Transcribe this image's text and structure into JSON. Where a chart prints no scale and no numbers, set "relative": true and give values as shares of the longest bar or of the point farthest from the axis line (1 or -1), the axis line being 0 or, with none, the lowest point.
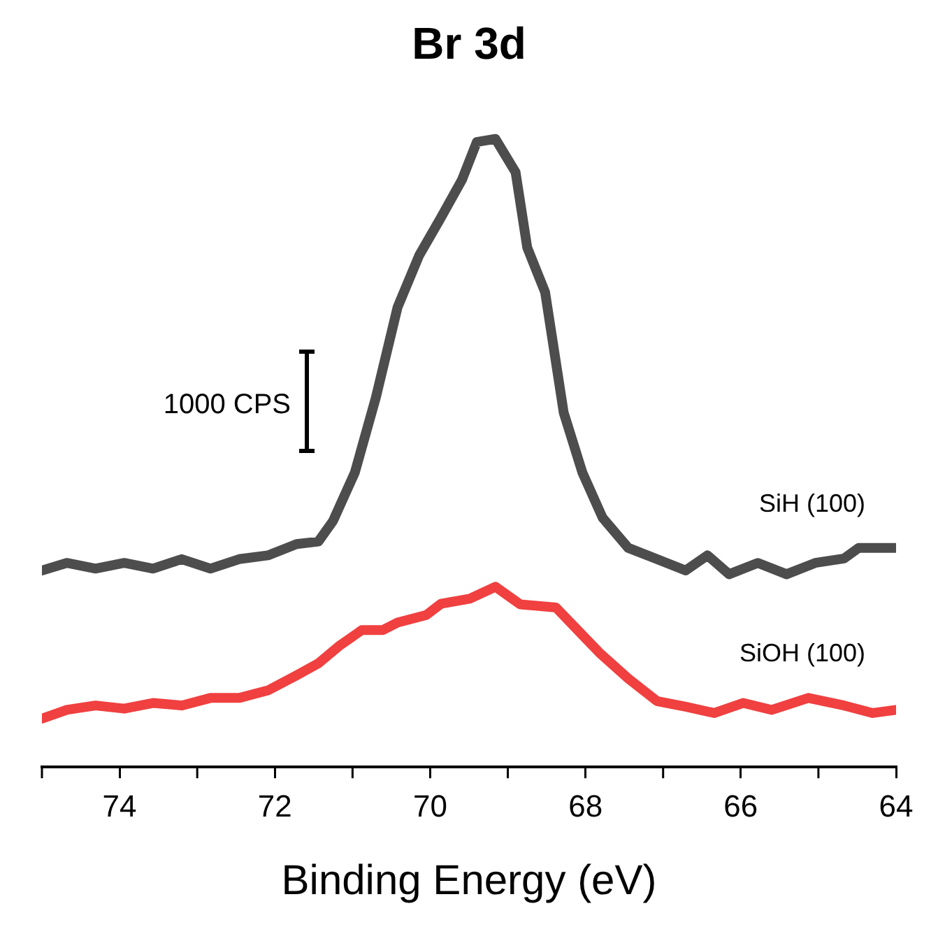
{
  "chart_data": {
    "type": "line",
    "title": "Br 3d",
    "xlabel": "Binding Energy (eV)",
    "relative": true,
    "xlim": [
      75,
      64
    ],
    "xticks": [
      {
        "value": 75,
        "label": null
      },
      74,
      {
        "value": 73,
        "label": null
      },
      72,
      {
        "value": 71,
        "label": null
      },
      70,
      {
        "value": 69,
        "label": null
      },
      68,
      {
        "value": 67,
        "label": null
      },
      66,
      {
        "value": 65,
        "label": null
      },
      64
    ],
    "grid": false,
    "legend": false,
    "marker": "none",
    "line_style": "solid",
    "annotations": [
      "1000 CPS"
    ],
    "series": [
      {
        "name": "SiH (100)",
        "color": "#4d4d4d",
        "x": [
          75.0,
          74.68,
          74.31,
          73.94,
          73.57,
          73.2,
          72.83,
          72.46,
          72.09,
          71.72,
          71.44,
          71.25,
          70.97,
          70.7,
          70.42,
          70.14,
          69.86,
          69.59,
          69.4,
          69.16,
          68.9,
          68.75,
          68.52,
          68.28,
          68.04,
          67.78,
          67.45,
          67.08,
          66.71,
          66.43,
          66.15,
          65.78,
          65.41,
          65.04,
          64.67,
          64.48,
          64.0
        ],
        "values": [
          0.313,
          0.325,
          0.316,
          0.325,
          0.316,
          0.331,
          0.316,
          0.331,
          0.337,
          0.355,
          0.359,
          0.392,
          0.469,
          0.588,
          0.732,
          0.815,
          0.875,
          0.935,
          0.995,
          1.0,
          0.947,
          0.827,
          0.756,
          0.564,
          0.469,
          0.397,
          0.349,
          0.331,
          0.313,
          0.337,
          0.307,
          0.325,
          0.307,
          0.325,
          0.332,
          0.349,
          0.349
        ]
      },
      {
        "name": "SiOH (100)",
        "color": "#f04040",
        "x": [
          75.0,
          74.68,
          74.31,
          73.94,
          73.57,
          73.2,
          72.83,
          72.46,
          72.09,
          71.72,
          71.44,
          71.16,
          70.88,
          70.61,
          70.42,
          70.05,
          69.86,
          69.49,
          69.16,
          68.84,
          68.38,
          68.1,
          67.82,
          67.45,
          67.08,
          66.71,
          66.34,
          65.97,
          65.6,
          65.13,
          64.67,
          64.3,
          64.0
        ],
        "values": [
          0.077,
          0.091,
          0.098,
          0.093,
          0.102,
          0.098,
          0.11,
          0.11,
          0.122,
          0.146,
          0.165,
          0.194,
          0.218,
          0.218,
          0.23,
          0.242,
          0.26,
          0.268,
          0.287,
          0.259,
          0.254,
          0.218,
          0.182,
          0.141,
          0.105,
          0.096,
          0.086,
          0.102,
          0.091,
          0.11,
          0.098,
          0.086,
          0.091
        ]
      }
    ]
  }
}
